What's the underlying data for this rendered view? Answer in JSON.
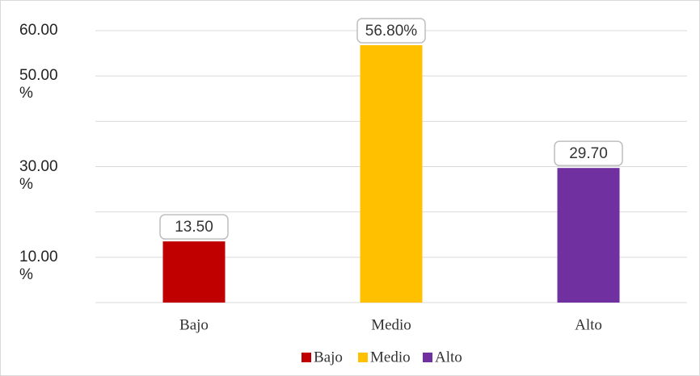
{
  "chart_data": {
    "type": "bar",
    "categories": [
      "Bajo",
      "Medio",
      "Alto"
    ],
    "values": [
      13.5,
      56.8,
      29.7
    ],
    "value_labels": [
      "13.50",
      "56.80%",
      "29.70"
    ],
    "colors": [
      "#c00000",
      "#ffc000",
      "#7030a0"
    ],
    "ylim": [
      0,
      60
    ],
    "yticks": [
      {
        "value": 0,
        "label": null
      },
      {
        "value": 10,
        "label": "10.00 %"
      },
      {
        "value": 20,
        "label": null
      },
      {
        "value": 30,
        "label": "30.00 %"
      },
      {
        "value": 40,
        "label": null
      },
      {
        "value": 50,
        "label": "50.00 %"
      },
      {
        "value": 60,
        "label": "60.00"
      }
    ],
    "grid": true,
    "legend": "bottom"
  }
}
